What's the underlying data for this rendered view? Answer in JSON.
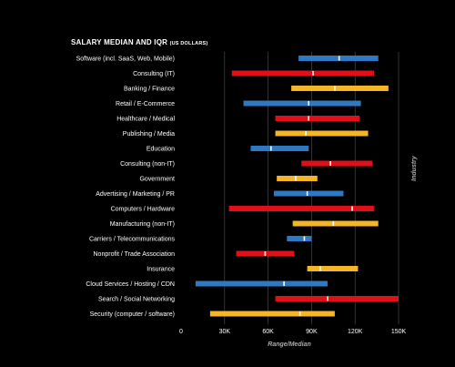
{
  "chart_data": {
    "type": "bar",
    "subtype": "range (IQR) with median marker",
    "title": "SALARY MEDIAN AND IQR",
    "subtitle": "(US DOLLARS)",
    "xlabel": "Range/Median",
    "ylabel": "Industry",
    "xlim": [
      0,
      150000
    ],
    "xticks": [
      0,
      30000,
      60000,
      90000,
      120000,
      150000
    ],
    "xtick_labels": [
      "0",
      "30K",
      "60K",
      "90K",
      "120K",
      "150K"
    ],
    "grid": "vertical",
    "colors": {
      "blue": "#2f78c2",
      "red": "#e10f1a",
      "yellow": "#f4b526",
      "grid": "#555555",
      "median": "#ffffff"
    },
    "categories": [
      "Software (incl. SaaS, Web, Mobile)",
      "Consulting (IT)",
      "Banking / Finance",
      "Retail / E-Commerce",
      "Healthcare / Medical",
      "Publishing / Media",
      "Education",
      "Consulting (non-IT)",
      "Government",
      "Advertising / Marketing / PR",
      "Computers / Hardware",
      "Manufacturing (non-IT)",
      "Carriers / Telecommunications",
      "Nonprofit / Trade Association",
      "Insurance",
      "Cloud Services / Hosting / CDN",
      "Search / Social Networking",
      "Security (computer / software)"
    ],
    "series": [
      {
        "category": "Software (incl. SaaS, Web, Mobile)",
        "q1": 81000,
        "median": 109000,
        "q3": 136000,
        "color": "blue"
      },
      {
        "category": "Consulting (IT)",
        "q1": 35000,
        "median": 91000,
        "q3": 133000,
        "color": "red"
      },
      {
        "category": "Banking / Finance",
        "q1": 76000,
        "median": 106000,
        "q3": 143000,
        "color": "yellow"
      },
      {
        "category": "Retail / E-Commerce",
        "q1": 43000,
        "median": 88000,
        "q3": 124000,
        "color": "blue"
      },
      {
        "category": "Healthcare / Medical",
        "q1": 65000,
        "median": 88000,
        "q3": 123000,
        "color": "red"
      },
      {
        "category": "Publishing / Media",
        "q1": 65000,
        "median": 86000,
        "q3": 129000,
        "color": "yellow"
      },
      {
        "category": "Education",
        "q1": 48000,
        "median": 62000,
        "q3": 88000,
        "color": "blue"
      },
      {
        "category": "Consulting (non-IT)",
        "q1": 83000,
        "median": 103000,
        "q3": 132000,
        "color": "red"
      },
      {
        "category": "Government",
        "q1": 66000,
        "median": 79000,
        "q3": 94000,
        "color": "yellow"
      },
      {
        "category": "Advertising / Marketing / PR",
        "q1": 64000,
        "median": 87000,
        "q3": 112000,
        "color": "blue"
      },
      {
        "category": "Computers / Hardware",
        "q1": 33000,
        "median": 118000,
        "q3": 133000,
        "color": "red"
      },
      {
        "category": "Manufacturing (non-IT)",
        "q1": 77000,
        "median": 105000,
        "q3": 136000,
        "color": "yellow"
      },
      {
        "category": "Carriers / Telecommunications",
        "q1": 73000,
        "median": 85000,
        "q3": 90000,
        "color": "blue"
      },
      {
        "category": "Nonprofit / Trade Association",
        "q1": 38000,
        "median": 58000,
        "q3": 78000,
        "color": "red"
      },
      {
        "category": "Insurance",
        "q1": 87000,
        "median": 96000,
        "q3": 122000,
        "color": "yellow"
      },
      {
        "category": "Cloud Services / Hosting / CDN",
        "q1": 10000,
        "median": 71000,
        "q3": 101000,
        "color": "blue"
      },
      {
        "category": "Search / Social Networking",
        "q1": 65000,
        "median": 101000,
        "q3": 150000,
        "color": "red"
      },
      {
        "category": "Security (computer / software)",
        "q1": 20000,
        "median": 82000,
        "q3": 106000,
        "color": "yellow"
      }
    ]
  }
}
